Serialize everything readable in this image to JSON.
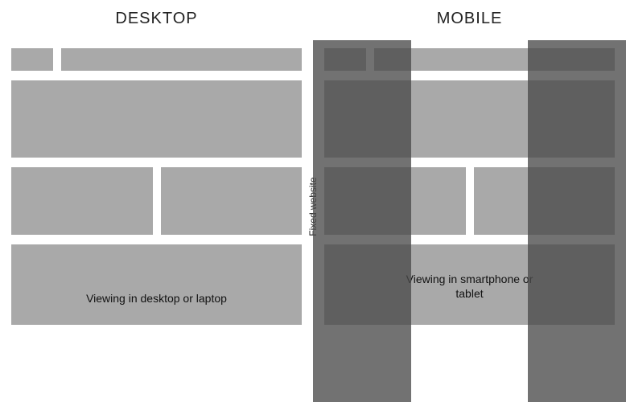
{
  "type": "infographic",
  "background_color": "#ffffff",
  "block_color": "#a9a9a9",
  "overlay_color": "#4a4a4a",
  "overlay_opacity": 0.78,
  "text_color": "#111111",
  "title_fontsize": 20,
  "caption_fontsize": 14,
  "side_label_fontsize": 12,
  "gap": 10,
  "desktop": {
    "title": "DESKTOP",
    "caption": "Viewing in desktop or laptop",
    "rows": [
      {
        "blocks": [
          "logo",
          "nav"
        ],
        "heights": 28
      },
      {
        "blocks": [
          "hero"
        ],
        "heights": 96
      },
      {
        "blocks": [
          "col",
          "col"
        ],
        "heights": 84
      },
      {
        "blocks": [
          "footer"
        ],
        "heights": 100
      }
    ]
  },
  "mobile": {
    "title": "MOBILE",
    "caption": "Viewing in smartphone or tablet",
    "overlay_width": 122,
    "rows": [
      {
        "blocks": [
          "logo",
          "nav"
        ],
        "heights": 28
      },
      {
        "blocks": [
          "hero"
        ],
        "heights": 96
      },
      {
        "blocks": [
          "col",
          "col"
        ],
        "heights": 84
      },
      {
        "blocks": [
          "footer"
        ],
        "heights": 100
      }
    ]
  },
  "side_label": "Fixed website"
}
